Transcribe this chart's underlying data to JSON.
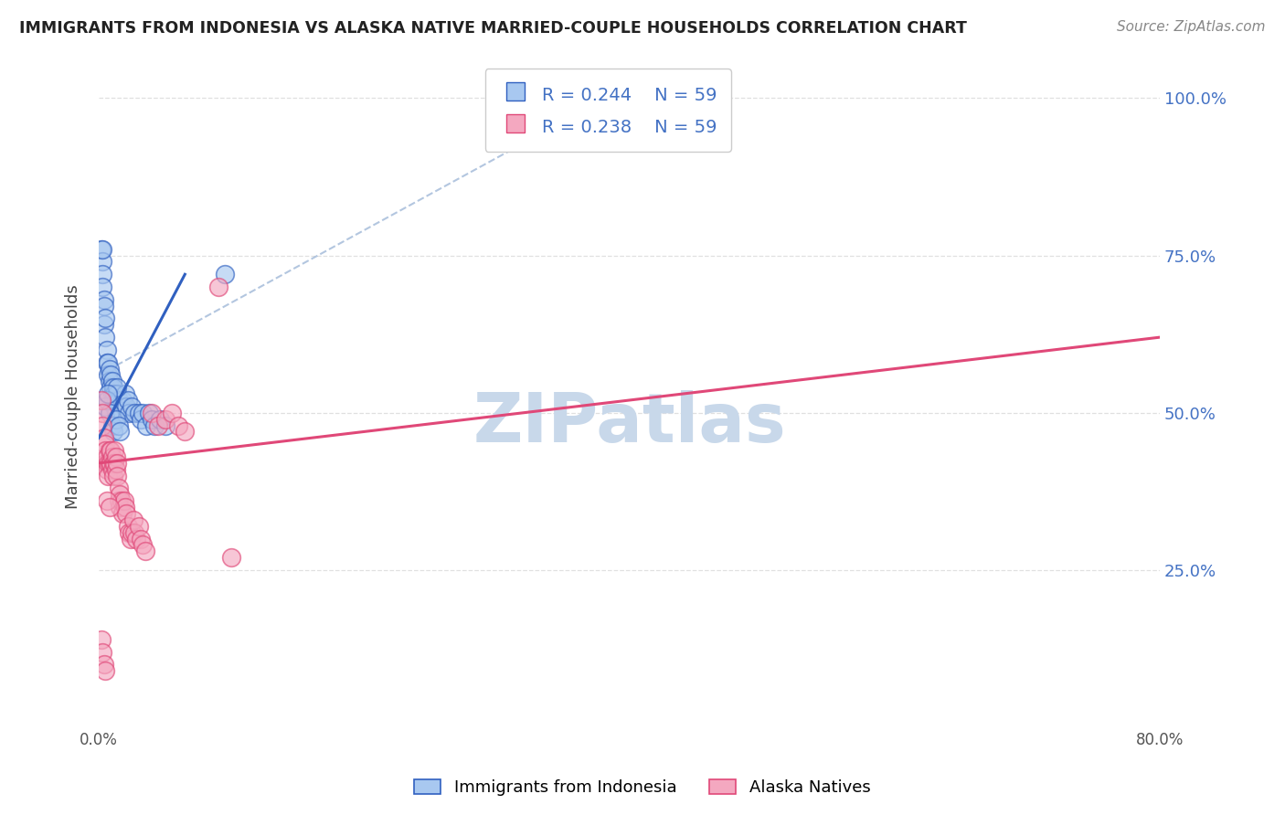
{
  "title": "IMMIGRANTS FROM INDONESIA VS ALASKA NATIVE MARRIED-COUPLE HOUSEHOLDS CORRELATION CHART",
  "source": "Source: ZipAtlas.com",
  "ylabel": "Married-couple Households",
  "legend_label1": "Immigrants from Indonesia",
  "legend_label2": "Alaska Natives",
  "R1": "0.244",
  "N1": "59",
  "R2": "0.238",
  "N2": "59",
  "color_blue": "#a8c8f0",
  "color_pink": "#f4a8c0",
  "line_blue": "#3060c0",
  "line_pink": "#e04878",
  "dashed_line_color": "#a0b8d8",
  "watermark_color": "#c8d8ea",
  "background_color": "#ffffff",
  "title_color": "#222222",
  "stat_color": "#4472c4",
  "grid_color": "#e0e0e0",
  "blue_line_x0": 0.0,
  "blue_line_y0": 0.46,
  "blue_line_x1": 0.065,
  "blue_line_y1": 0.72,
  "pink_line_x0": 0.0,
  "pink_line_y0": 0.42,
  "pink_line_x1": 0.8,
  "pink_line_y1": 0.62,
  "blue_scatter": [
    [
      0.002,
      0.76
    ],
    [
      0.003,
      0.74
    ],
    [
      0.003,
      0.72
    ],
    [
      0.003,
      0.7
    ],
    [
      0.004,
      0.68
    ],
    [
      0.004,
      0.67
    ],
    [
      0.004,
      0.64
    ],
    [
      0.005,
      0.65
    ],
    [
      0.005,
      0.62
    ],
    [
      0.006,
      0.6
    ],
    [
      0.006,
      0.58
    ],
    [
      0.007,
      0.58
    ],
    [
      0.007,
      0.56
    ],
    [
      0.008,
      0.57
    ],
    [
      0.008,
      0.55
    ],
    [
      0.009,
      0.56
    ],
    [
      0.009,
      0.54
    ],
    [
      0.01,
      0.55
    ],
    [
      0.01,
      0.53
    ],
    [
      0.011,
      0.54
    ],
    [
      0.011,
      0.52
    ],
    [
      0.012,
      0.53
    ],
    [
      0.012,
      0.51
    ],
    [
      0.013,
      0.52
    ],
    [
      0.013,
      0.5
    ],
    [
      0.014,
      0.53
    ],
    [
      0.015,
      0.52
    ],
    [
      0.016,
      0.51
    ],
    [
      0.017,
      0.5
    ],
    [
      0.018,
      0.5
    ],
    [
      0.018,
      0.52
    ],
    [
      0.019,
      0.51
    ],
    [
      0.02,
      0.53
    ],
    [
      0.021,
      0.51
    ],
    [
      0.022,
      0.52
    ],
    [
      0.023,
      0.5
    ],
    [
      0.025,
      0.51
    ],
    [
      0.027,
      0.5
    ],
    [
      0.03,
      0.5
    ],
    [
      0.032,
      0.49
    ],
    [
      0.033,
      0.5
    ],
    [
      0.036,
      0.48
    ],
    [
      0.038,
      0.5
    ],
    [
      0.04,
      0.49
    ],
    [
      0.042,
      0.48
    ],
    [
      0.046,
      0.49
    ],
    [
      0.05,
      0.48
    ],
    [
      0.003,
      0.76
    ],
    [
      0.014,
      0.54
    ],
    [
      0.005,
      0.51
    ],
    [
      0.006,
      0.52
    ],
    [
      0.007,
      0.53
    ],
    [
      0.008,
      0.5
    ],
    [
      0.01,
      0.48
    ],
    [
      0.011,
      0.47
    ],
    [
      0.013,
      0.49
    ],
    [
      0.015,
      0.48
    ],
    [
      0.016,
      0.47
    ],
    [
      0.095,
      0.72
    ]
  ],
  "pink_scatter": [
    [
      0.002,
      0.52
    ],
    [
      0.003,
      0.5
    ],
    [
      0.003,
      0.48
    ],
    [
      0.004,
      0.46
    ],
    [
      0.005,
      0.45
    ],
    [
      0.005,
      0.44
    ],
    [
      0.005,
      0.42
    ],
    [
      0.006,
      0.43
    ],
    [
      0.006,
      0.41
    ],
    [
      0.007,
      0.42
    ],
    [
      0.007,
      0.4
    ],
    [
      0.008,
      0.44
    ],
    [
      0.008,
      0.42
    ],
    [
      0.009,
      0.44
    ],
    [
      0.009,
      0.42
    ],
    [
      0.01,
      0.43
    ],
    [
      0.01,
      0.41
    ],
    [
      0.011,
      0.42
    ],
    [
      0.011,
      0.4
    ],
    [
      0.012,
      0.44
    ],
    [
      0.012,
      0.42
    ],
    [
      0.013,
      0.43
    ],
    [
      0.013,
      0.41
    ],
    [
      0.014,
      0.42
    ],
    [
      0.014,
      0.4
    ],
    [
      0.015,
      0.38
    ],
    [
      0.015,
      0.36
    ],
    [
      0.016,
      0.37
    ],
    [
      0.016,
      0.35
    ],
    [
      0.017,
      0.36
    ],
    [
      0.018,
      0.34
    ],
    [
      0.019,
      0.36
    ],
    [
      0.02,
      0.35
    ],
    [
      0.021,
      0.34
    ],
    [
      0.022,
      0.32
    ],
    [
      0.023,
      0.31
    ],
    [
      0.024,
      0.3
    ],
    [
      0.025,
      0.31
    ],
    [
      0.026,
      0.33
    ],
    [
      0.027,
      0.31
    ],
    [
      0.028,
      0.3
    ],
    [
      0.03,
      0.32
    ],
    [
      0.032,
      0.3
    ],
    [
      0.033,
      0.29
    ],
    [
      0.035,
      0.28
    ],
    [
      0.04,
      0.5
    ],
    [
      0.045,
      0.48
    ],
    [
      0.05,
      0.49
    ],
    [
      0.055,
      0.5
    ],
    [
      0.06,
      0.48
    ],
    [
      0.065,
      0.47
    ],
    [
      0.09,
      0.7
    ],
    [
      0.1,
      0.27
    ],
    [
      0.002,
      0.14
    ],
    [
      0.003,
      0.12
    ],
    [
      0.004,
      0.1
    ],
    [
      0.005,
      0.09
    ],
    [
      0.006,
      0.36
    ],
    [
      0.008,
      0.35
    ]
  ],
  "xlim": [
    0.0,
    0.8
  ],
  "ylim": [
    0.0,
    1.05
  ],
  "x_ticks": [
    0.0,
    0.1,
    0.2,
    0.3,
    0.4,
    0.5,
    0.6,
    0.7,
    0.8
  ],
  "x_tick_labels": [
    "0.0%",
    "",
    "",
    "",
    "",
    "",
    "",
    "",
    "80.0%"
  ],
  "y_ticks_right": [
    1.0,
    0.75,
    0.5,
    0.25
  ],
  "y_tick_labels_right": [
    "100.0%",
    "75.0%",
    "50.0%",
    "25.0%"
  ]
}
